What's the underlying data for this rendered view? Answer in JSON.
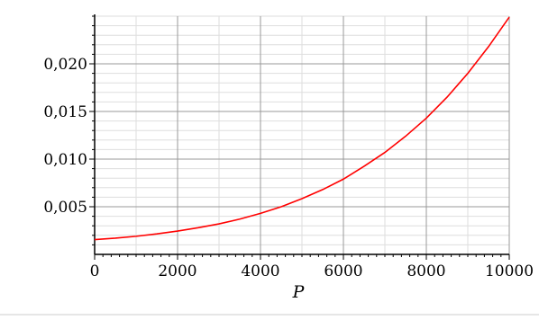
{
  "chart_data": {
    "type": "line",
    "title": "",
    "xlabel": "P",
    "ylabel": "",
    "xlim": [
      0,
      10000
    ],
    "ylim": [
      0,
      0.025
    ],
    "x_ticks": [
      0,
      2000,
      4000,
      6000,
      8000,
      10000
    ],
    "x_tick_labels": [
      "0",
      "2000",
      "4000",
      "6000",
      "8000",
      "10000"
    ],
    "y_ticks": [
      0.005,
      0.01,
      0.015,
      0.02
    ],
    "y_tick_labels": [
      "0,005",
      "0,010",
      "0,015",
      "0,020"
    ],
    "x_minor_step": 1000,
    "y_minor_step": 0.001,
    "grid": true,
    "legend": "none",
    "series": [
      {
        "color": "#ff0000",
        "x": [
          0,
          500,
          1000,
          1500,
          2000,
          2500,
          3000,
          3500,
          4000,
          4500,
          5000,
          5500,
          6000,
          6500,
          7000,
          7500,
          8000,
          8500,
          9000,
          9500,
          10000
        ],
        "y": [
          0.00155,
          0.0017,
          0.0019,
          0.00215,
          0.00245,
          0.0028,
          0.0032,
          0.0037,
          0.0043,
          0.005,
          0.00585,
          0.0068,
          0.0079,
          0.00925,
          0.0107,
          0.0124,
          0.0143,
          0.0165,
          0.019,
          0.0218,
          0.0249
        ]
      }
    ]
  },
  "colors": {
    "major_grid": "#999999",
    "minor_grid": "#dedede",
    "axis": "#000000",
    "curve": "#ff0000"
  }
}
